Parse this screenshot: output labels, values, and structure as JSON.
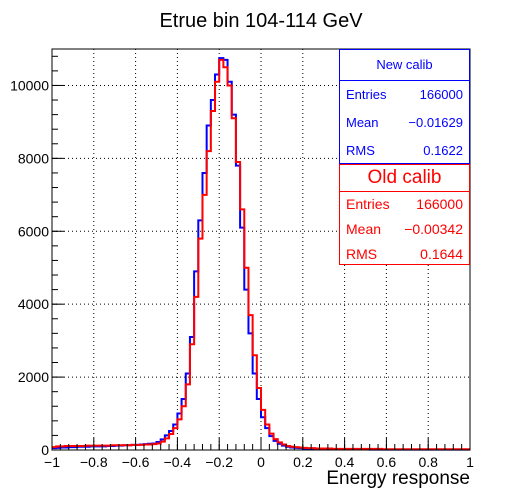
{
  "chart_data": {
    "type": "histogram",
    "title": "Etrue bin 104-114 GeV",
    "xlabel": "Energy response",
    "ylabel": "",
    "xlim": [
      -1,
      1
    ],
    "ylim": [
      0,
      11000
    ],
    "x_ticks": [
      "-1",
      "-0.8",
      "-0.6",
      "-0.4",
      "-0.2",
      "0",
      "0.2",
      "0.4",
      "0.6",
      "0.8",
      "1"
    ],
    "y_ticks": [
      "0",
      "2000",
      "4000",
      "6000",
      "8000",
      "10000"
    ],
    "grid": true,
    "bin_width": 0.02,
    "series": [
      {
        "name": "New calib",
        "color": "#0000ff",
        "values": [
          50,
          60,
          70,
          70,
          80,
          80,
          90,
          90,
          90,
          100,
          100,
          100,
          100,
          110,
          110,
          120,
          120,
          130,
          130,
          140,
          140,
          150,
          160,
          170,
          180,
          220,
          290,
          400,
          520,
          700,
          1000,
          1400,
          2100,
          3100,
          4900,
          6300,
          7600,
          8900,
          9600,
          10300,
          10750,
          10700,
          10100,
          9200,
          7800,
          6100,
          4400,
          3200,
          2100,
          1400,
          900,
          600,
          380,
          250,
          170,
          120,
          90,
          70,
          60,
          50,
          40,
          40,
          30,
          30,
          30,
          20,
          20,
          20,
          20,
          20,
          20,
          20,
          20,
          20,
          20,
          20,
          10,
          10,
          10,
          10,
          10,
          10,
          10,
          10,
          10,
          10,
          10,
          10,
          10,
          10,
          10,
          10,
          10,
          10,
          10,
          10,
          10,
          10,
          10,
          10
        ]
      },
      {
        "name": "Old calib",
        "color": "#ff0000",
        "values": [
          80,
          100,
          100,
          110,
          110,
          110,
          110,
          110,
          120,
          120,
          120,
          120,
          120,
          120,
          130,
          130,
          130,
          130,
          130,
          140,
          140,
          140,
          150,
          150,
          160,
          180,
          230,
          320,
          440,
          600,
          840,
          1200,
          1800,
          2900,
          4200,
          5800,
          7000,
          8200,
          9300,
          10100,
          10700,
          10500,
          10000,
          9100,
          7900,
          6600,
          5000,
          3700,
          2600,
          1700,
          1100,
          700,
          450,
          300,
          210,
          150,
          110,
          90,
          80,
          70,
          60,
          50,
          50,
          40,
          40,
          40,
          40,
          30,
          30,
          30,
          30,
          30,
          30,
          30,
          30,
          30,
          30,
          30,
          30,
          20,
          20,
          20,
          20,
          20,
          20,
          20,
          20,
          20,
          20,
          20,
          20,
          20,
          20,
          20,
          20,
          20,
          20,
          20,
          20,
          20
        ]
      }
    ]
  },
  "stats_new": {
    "title": "New calib",
    "entries_label": "Entries",
    "entries_value": "166000",
    "mean_label": "Mean",
    "mean_value": "−0.01629",
    "rms_label": "RMS",
    "rms_value": "0.1622"
  },
  "stats_old": {
    "title": "Old calib",
    "entries_label": "Entries",
    "entries_value": "166000",
    "mean_label": "Mean",
    "mean_value": "−0.00342",
    "rms_label": "RMS",
    "rms_value": "0.1644"
  }
}
